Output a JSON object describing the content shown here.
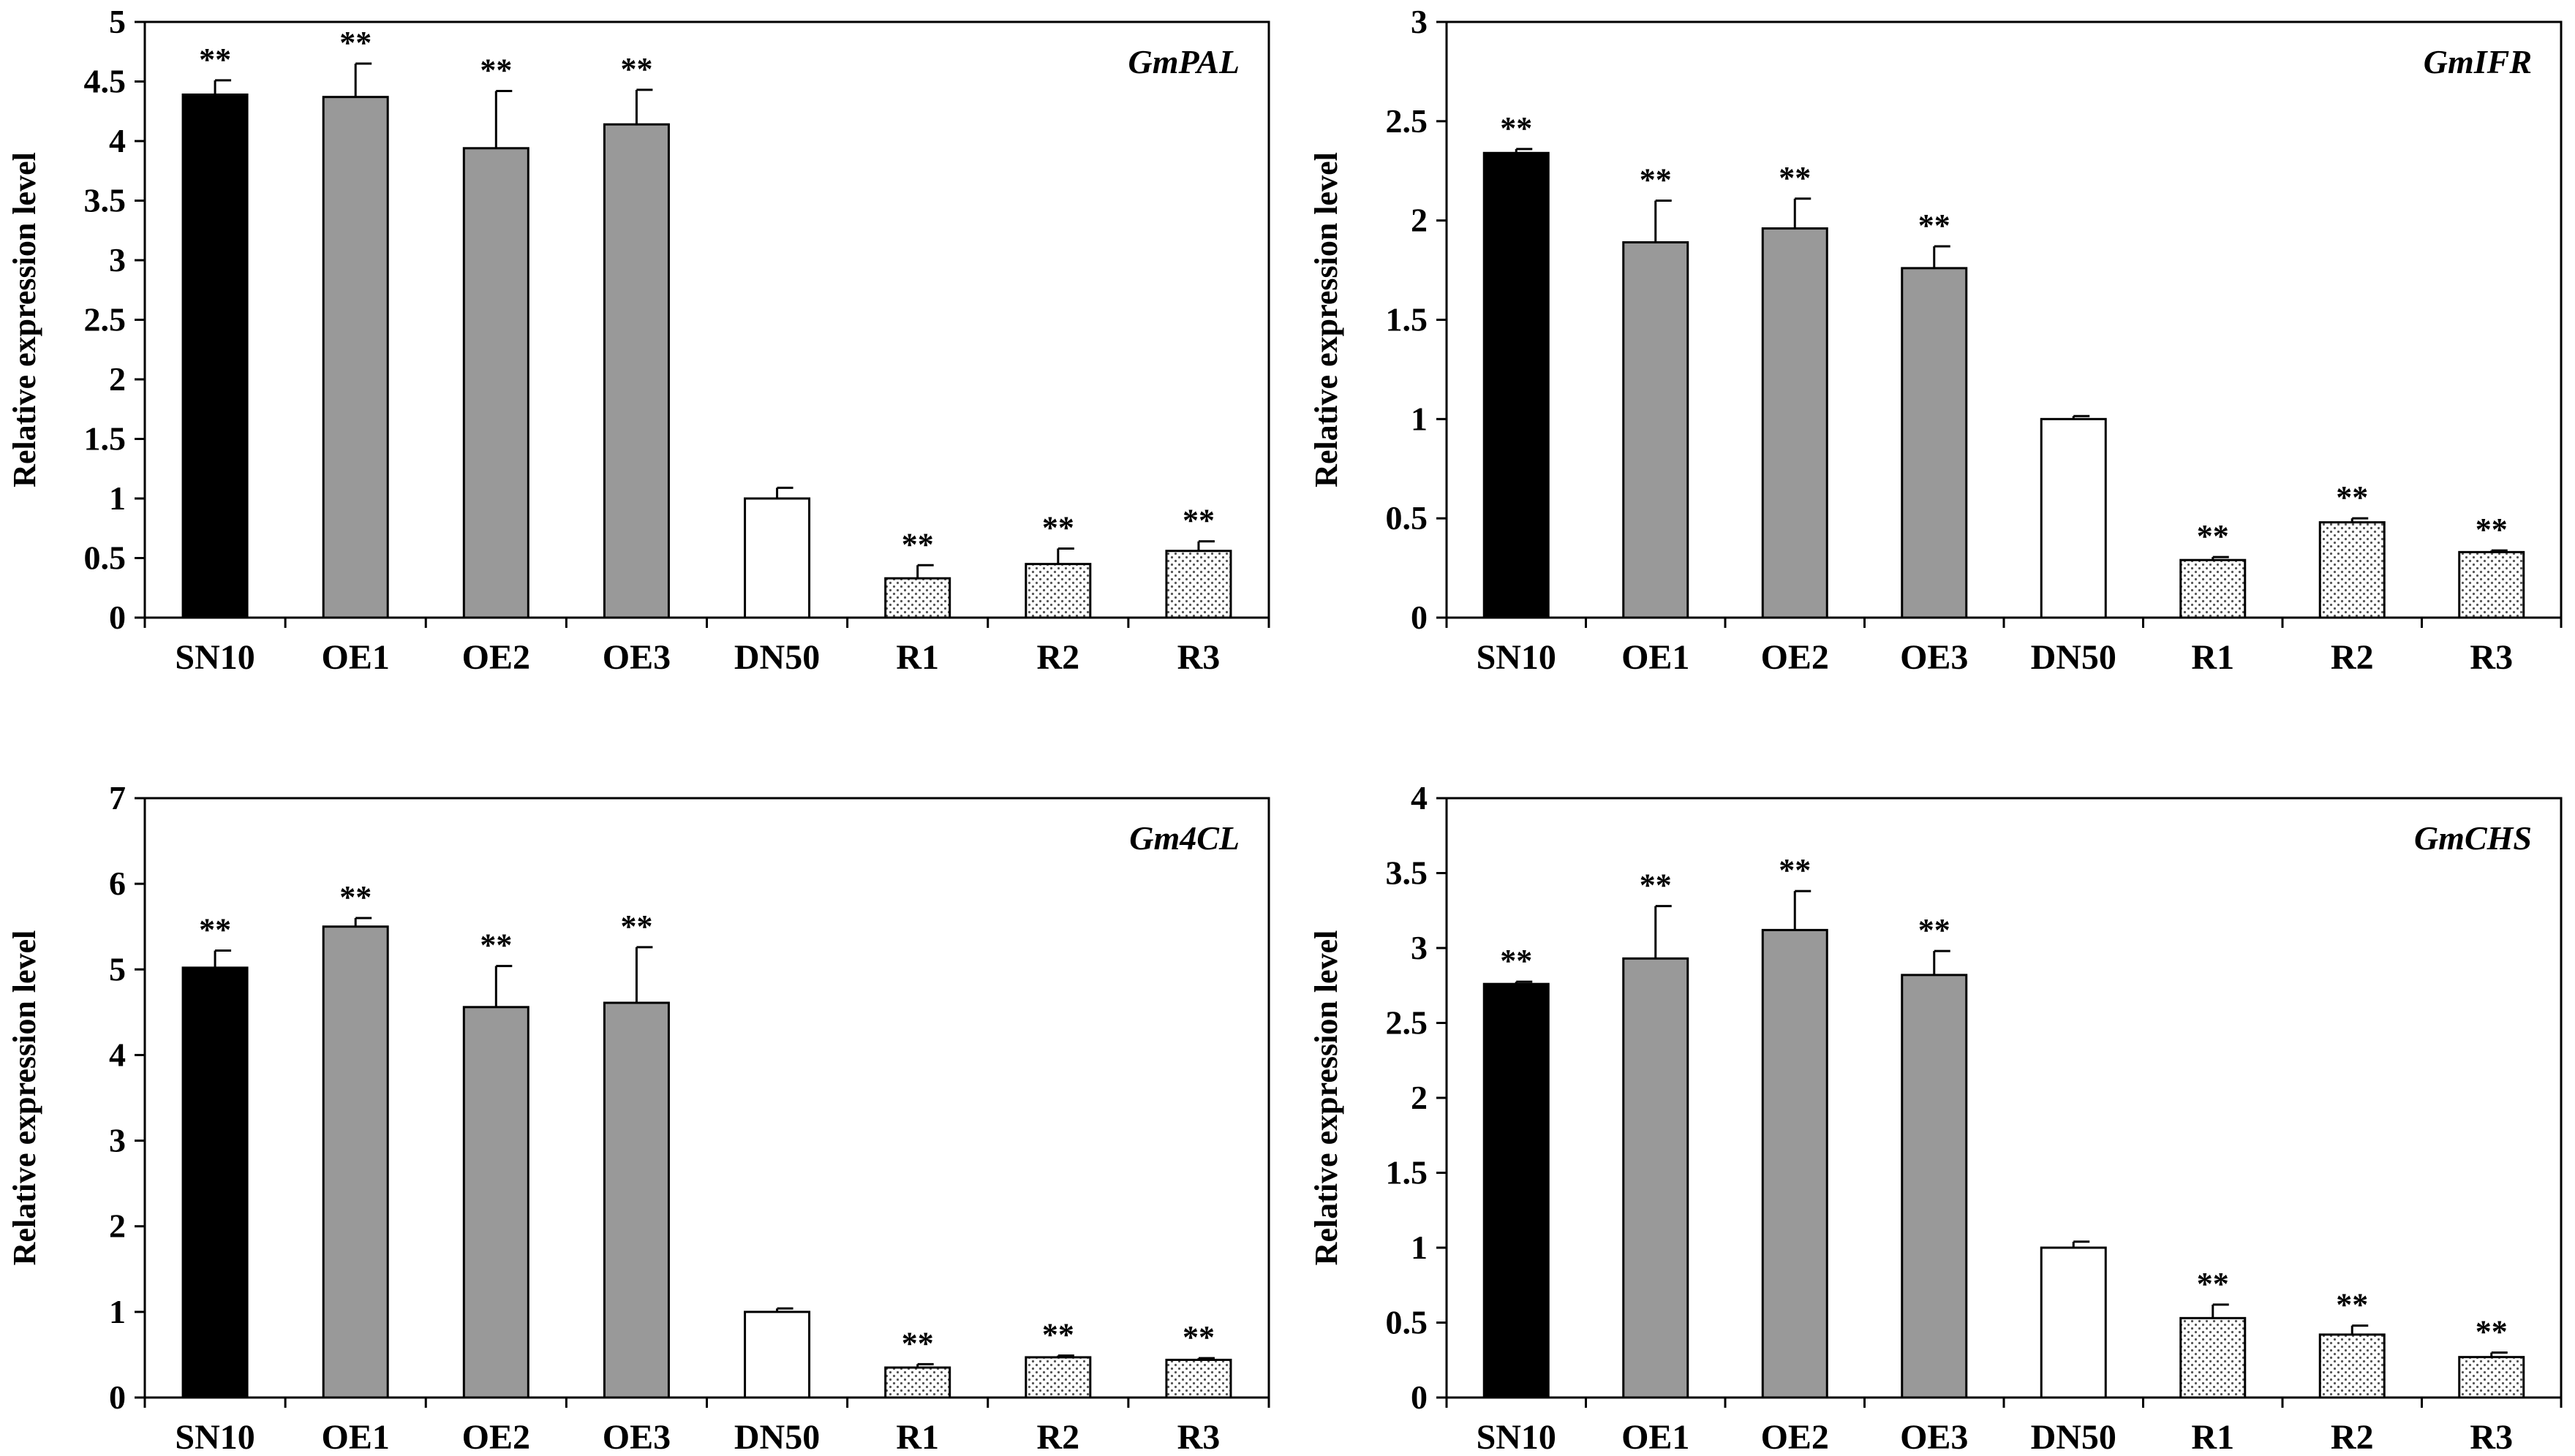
{
  "colors": {
    "SN10": "#000000",
    "OE": "#999999",
    "DN50": "#ffffff",
    "R": "#ffffff",
    "R_dots": "#555555",
    "axis": "#000000"
  },
  "chart_data": [
    {
      "type": "bar",
      "title": "GmPAL",
      "ylabel": "Relative expression level",
      "ylim": [
        0,
        5
      ],
      "yticks": [
        "0",
        "0.5",
        "1",
        "1.5",
        "2",
        "2.5",
        "3",
        "3.5",
        "4",
        "4.5",
        "5"
      ],
      "categories": [
        "SN10",
        "OE1",
        "OE2",
        "OE3",
        "DN50",
        "R1",
        "R2",
        "R3"
      ],
      "values": [
        4.39,
        4.37,
        3.94,
        4.14,
        1.0,
        0.33,
        0.45,
        0.56
      ],
      "errors": [
        0.12,
        0.28,
        0.48,
        0.29,
        0.09,
        0.11,
        0.13,
        0.08
      ],
      "significance": [
        "**",
        "**",
        "**",
        "**",
        "",
        "**",
        "**",
        "**"
      ]
    },
    {
      "type": "bar",
      "title": "GmIFR",
      "ylabel": "Relative expression level",
      "ylim": [
        0,
        3
      ],
      "yticks": [
        "0",
        "0.5",
        "1",
        "1.5",
        "2",
        "2.5",
        "3"
      ],
      "categories": [
        "SN10",
        "OE1",
        "OE2",
        "OE3",
        "DN50",
        "R1",
        "R2",
        "R3"
      ],
      "values": [
        2.34,
        1.89,
        1.96,
        1.76,
        1.0,
        0.29,
        0.48,
        0.33
      ],
      "errors": [
        0.02,
        0.21,
        0.15,
        0.11,
        0.015,
        0.015,
        0.02,
        0.008
      ],
      "significance": [
        "**",
        "**",
        "**",
        "**",
        "",
        "**",
        "**",
        "**"
      ]
    },
    {
      "type": "bar",
      "title": "Gm4CL",
      "ylabel": "Relative expression level",
      "ylim": [
        0,
        7
      ],
      "yticks": [
        "0",
        "1",
        "2",
        "3",
        "4",
        "5",
        "6",
        "7"
      ],
      "categories": [
        "SN10",
        "OE1",
        "OE2",
        "OE3",
        "DN50",
        "R1",
        "R2",
        "R3"
      ],
      "values": [
        5.02,
        5.5,
        4.56,
        4.61,
        1.0,
        0.35,
        0.47,
        0.44
      ],
      "errors": [
        0.2,
        0.1,
        0.48,
        0.65,
        0.04,
        0.04,
        0.02,
        0.02
      ],
      "significance": [
        "**",
        "**",
        "**",
        "**",
        "",
        "**",
        "**",
        "**"
      ]
    },
    {
      "type": "bar",
      "title": "GmCHS",
      "ylabel": "Relative expression level",
      "ylim": [
        0,
        4
      ],
      "yticks": [
        "0",
        "0.5",
        "1",
        "1.5",
        "2",
        "2.5",
        "3",
        "3.5",
        "4"
      ],
      "categories": [
        "SN10",
        "OE1",
        "OE2",
        "OE3",
        "DN50",
        "R1",
        "R2",
        "R3"
      ],
      "values": [
        2.76,
        2.93,
        3.12,
        2.82,
        1.0,
        0.53,
        0.42,
        0.27
      ],
      "errors": [
        0.015,
        0.35,
        0.26,
        0.16,
        0.04,
        0.09,
        0.06,
        0.03
      ],
      "significance": [
        "**",
        "**",
        "**",
        "**",
        "",
        "**",
        "**",
        "**"
      ]
    }
  ]
}
